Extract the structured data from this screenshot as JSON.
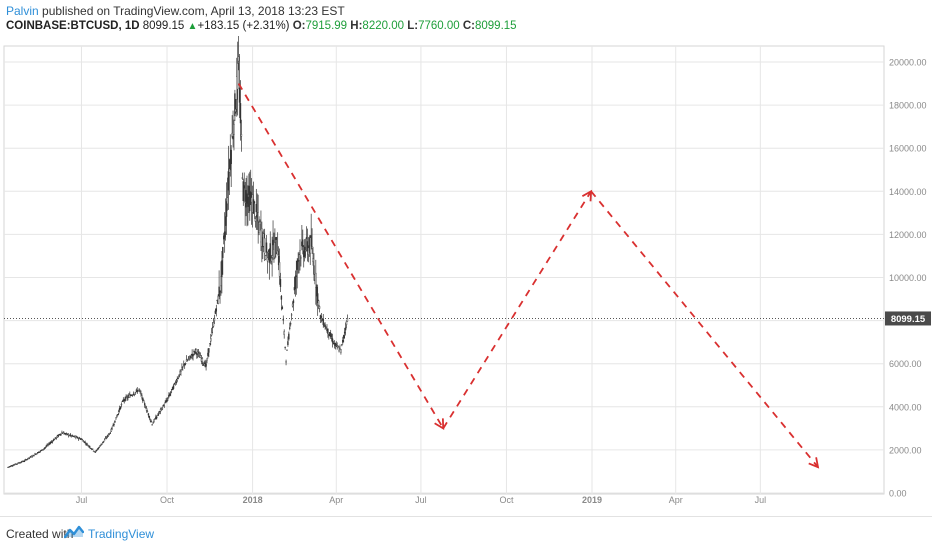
{
  "header": {
    "author": "Palvin",
    "published_text": " published on TradingView.com, April 13, 2018 13:23 EST",
    "symbol": "COINBASE:BTCUSD, 1D",
    "last": "8099.15",
    "change": "+183.15 (+2.31%)",
    "open_label": "O:",
    "open": "7915.99",
    "high_label": "H:",
    "high": "8220.00",
    "low_label": "L:",
    "low": "7760.00",
    "close_label": "C:",
    "close": "8099.15"
  },
  "footer": {
    "created_with": "Created with",
    "brand": "TradingView"
  },
  "colors": {
    "candle": "#333333",
    "projection": "#d93030",
    "grid": "#e6e6e6",
    "price_tag": "#4a4a4a",
    "brand": "#2f8fd8",
    "up": "#1e9e3a"
  },
  "chart_data": {
    "type": "line",
    "x_ticks": [
      "Jul",
      "Oct",
      "2018",
      "Apr",
      "Jul",
      "Oct",
      "2019",
      "Apr",
      "Jul"
    ],
    "y_ticks": [
      "0.00",
      "2000.00",
      "4000.00",
      "6000.00",
      "8000.00",
      "10000.00",
      "12000.00",
      "14000.00",
      "16000.00",
      "18000.00",
      "20000.00"
    ],
    "ylim": [
      0,
      20000
    ],
    "current_price": 8099.15,
    "current_price_label": "8099.15",
    "series": [
      {
        "x": [
          "2017-04-13",
          "2017-05-01",
          "2017-05-20",
          "2017-06-10",
          "2017-07-01",
          "2017-07-16",
          "2017-08-01",
          "2017-08-15",
          "2017-09-01",
          "2017-09-15",
          "2017-10-01",
          "2017-10-20",
          "2017-11-01",
          "2017-11-12",
          "2017-11-28",
          "2017-12-07",
          "2017-12-17",
          "2017-12-22",
          "2018-01-01",
          "2018-01-17",
          "2018-01-28",
          "2018-02-06",
          "2018-02-20",
          "2018-03-05",
          "2018-03-15",
          "2018-03-30",
          "2018-04-06",
          "2018-04-13"
        ],
        "values": [
          1200,
          1500,
          2000,
          2800,
          2500,
          1900,
          2800,
          4300,
          4800,
          3200,
          4300,
          6000,
          6600,
          5900,
          9800,
          15000,
          19700,
          14000,
          13500,
          11000,
          11500,
          6200,
          11200,
          11500,
          8200,
          6900,
          6600,
          8099
        ]
      },
      {
        "x": [
          "2017-12-17",
          "2018-07-25",
          "2018-12-31",
          "2019-09-01"
        ],
        "values": [
          19000,
          3000,
          14000,
          1200
        ]
      }
    ]
  }
}
